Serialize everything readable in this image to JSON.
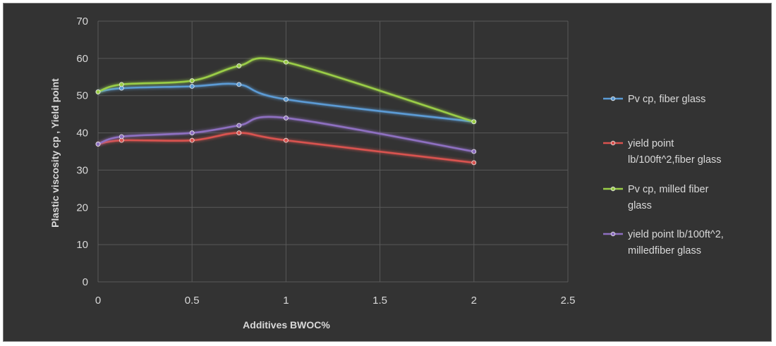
{
  "chart_data": {
    "type": "line",
    "title": "",
    "xlabel": "Additives BWOC%",
    "ylabel": "Plastic viscosity cp , Yield point",
    "xlim": [
      0,
      2.5
    ],
    "ylim": [
      0,
      70
    ],
    "xticks": [
      0,
      0.5,
      1,
      1.5,
      2,
      2.5
    ],
    "yticks": [
      0,
      10,
      20,
      30,
      40,
      50,
      60,
      70
    ],
    "xtick_labels": [
      "0",
      "0.5",
      "1",
      "1.5",
      "2",
      "2.5"
    ],
    "ytick_labels": [
      "0",
      "10",
      "20",
      "30",
      "40",
      "50",
      "60",
      "70"
    ],
    "grid": true,
    "smooth": true,
    "legend_position": "right",
    "series": [
      {
        "name": "Pv cp, fiber glass",
        "legend_lines": [
          "Pv cp, fiber glass"
        ],
        "color": "#5b9bd5",
        "x": [
          0,
          0.125,
          0.5,
          0.75,
          1,
          2
        ],
        "y": [
          51,
          52,
          52.5,
          53,
          49,
          43
        ]
      },
      {
        "name": "yield point lb/100ft^2,fiber glass",
        "legend_lines": [
          "yield point",
          "lb/100ft^2,fiber glass"
        ],
        "color": "#d9534f",
        "x": [
          0,
          0.125,
          0.5,
          0.75,
          1,
          2
        ],
        "y": [
          37,
          38,
          38,
          40,
          38,
          32
        ]
      },
      {
        "name": "Pv cp,  milled fiber glass",
        "legend_lines": [
          "Pv cp,  milled fiber",
          "glass"
        ],
        "color": "#9acd47",
        "x": [
          0,
          0.125,
          0.5,
          0.75,
          1,
          2
        ],
        "y": [
          51,
          53,
          54,
          58,
          59,
          43
        ]
      },
      {
        "name": "yield point lb/100ft^2, milledfiber glass",
        "legend_lines": [
          "yield point lb/100ft^2,",
          "milledfiber glass"
        ],
        "color": "#8e6fc1",
        "x": [
          0,
          0.125,
          0.5,
          0.75,
          1,
          2
        ],
        "y": [
          37,
          39,
          40,
          42,
          44,
          35
        ]
      }
    ]
  }
}
